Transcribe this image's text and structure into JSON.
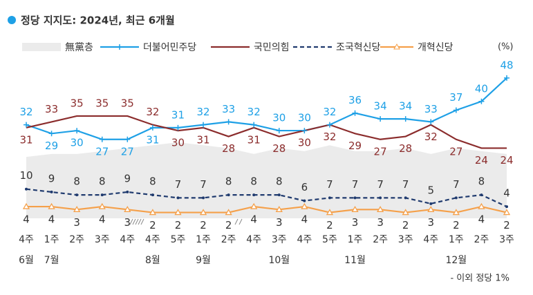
{
  "chart_data": {
    "type": "line",
    "title": "정당 지지도: 2024년, 최근 6개월",
    "unit": "(%)",
    "footnote": "- 이외 정당 1%",
    "categories": [
      "4주",
      "1주",
      "2주",
      "3주",
      "4주",
      "4주",
      "5주",
      "1주",
      "2주",
      "4주",
      "3주",
      "4주",
      "5주",
      "1주",
      "2주",
      "3주",
      "4주",
      "1주",
      "2주",
      "3주"
    ],
    "months": [
      "6월",
      "7월",
      null,
      null,
      null,
      "8월",
      null,
      "9월",
      null,
      null,
      "10월",
      null,
      null,
      "11월",
      null,
      null,
      null,
      "12월",
      null,
      null
    ],
    "ylim": [
      0,
      52
    ],
    "series": [
      {
        "name": "無黨층",
        "color": "#ebebeb",
        "style": "area",
        "values": [
          21,
          22,
          22,
          23,
          24,
          25,
          26,
          25,
          24,
          22,
          24,
          23,
          25,
          23,
          23,
          24,
          22,
          24,
          23,
          22
        ]
      },
      {
        "name": "더불어민주당",
        "color": "#1ea0e6",
        "style": "line",
        "values": [
          32,
          29,
          30,
          27,
          27,
          31,
          31,
          32,
          33,
          32,
          30,
          30,
          32,
          36,
          34,
          34,
          33,
          37,
          40,
          48
        ]
      },
      {
        "name": "국민의힘",
        "color": "#8b2c2c",
        "style": "line",
        "values": [
          31,
          33,
          35,
          35,
          35,
          32,
          30,
          31,
          28,
          31,
          28,
          30,
          32,
          29,
          27,
          28,
          32,
          27,
          24,
          24
        ]
      },
      {
        "name": "조국혁신당",
        "color": "#1f3a6e",
        "style": "dashed",
        "values": [
          10,
          9,
          8,
          8,
          9,
          8,
          7,
          7,
          8,
          8,
          8,
          6,
          7,
          7,
          7,
          7,
          5,
          7,
          8,
          4
        ]
      },
      {
        "name": "개혁신당",
        "color": "#f5a04a",
        "style": "line",
        "values": [
          4,
          4,
          3,
          4,
          3,
          2,
          2,
          2,
          2,
          4,
          3,
          4,
          2,
          3,
          3,
          2,
          3,
          2,
          4,
          2
        ]
      }
    ]
  }
}
